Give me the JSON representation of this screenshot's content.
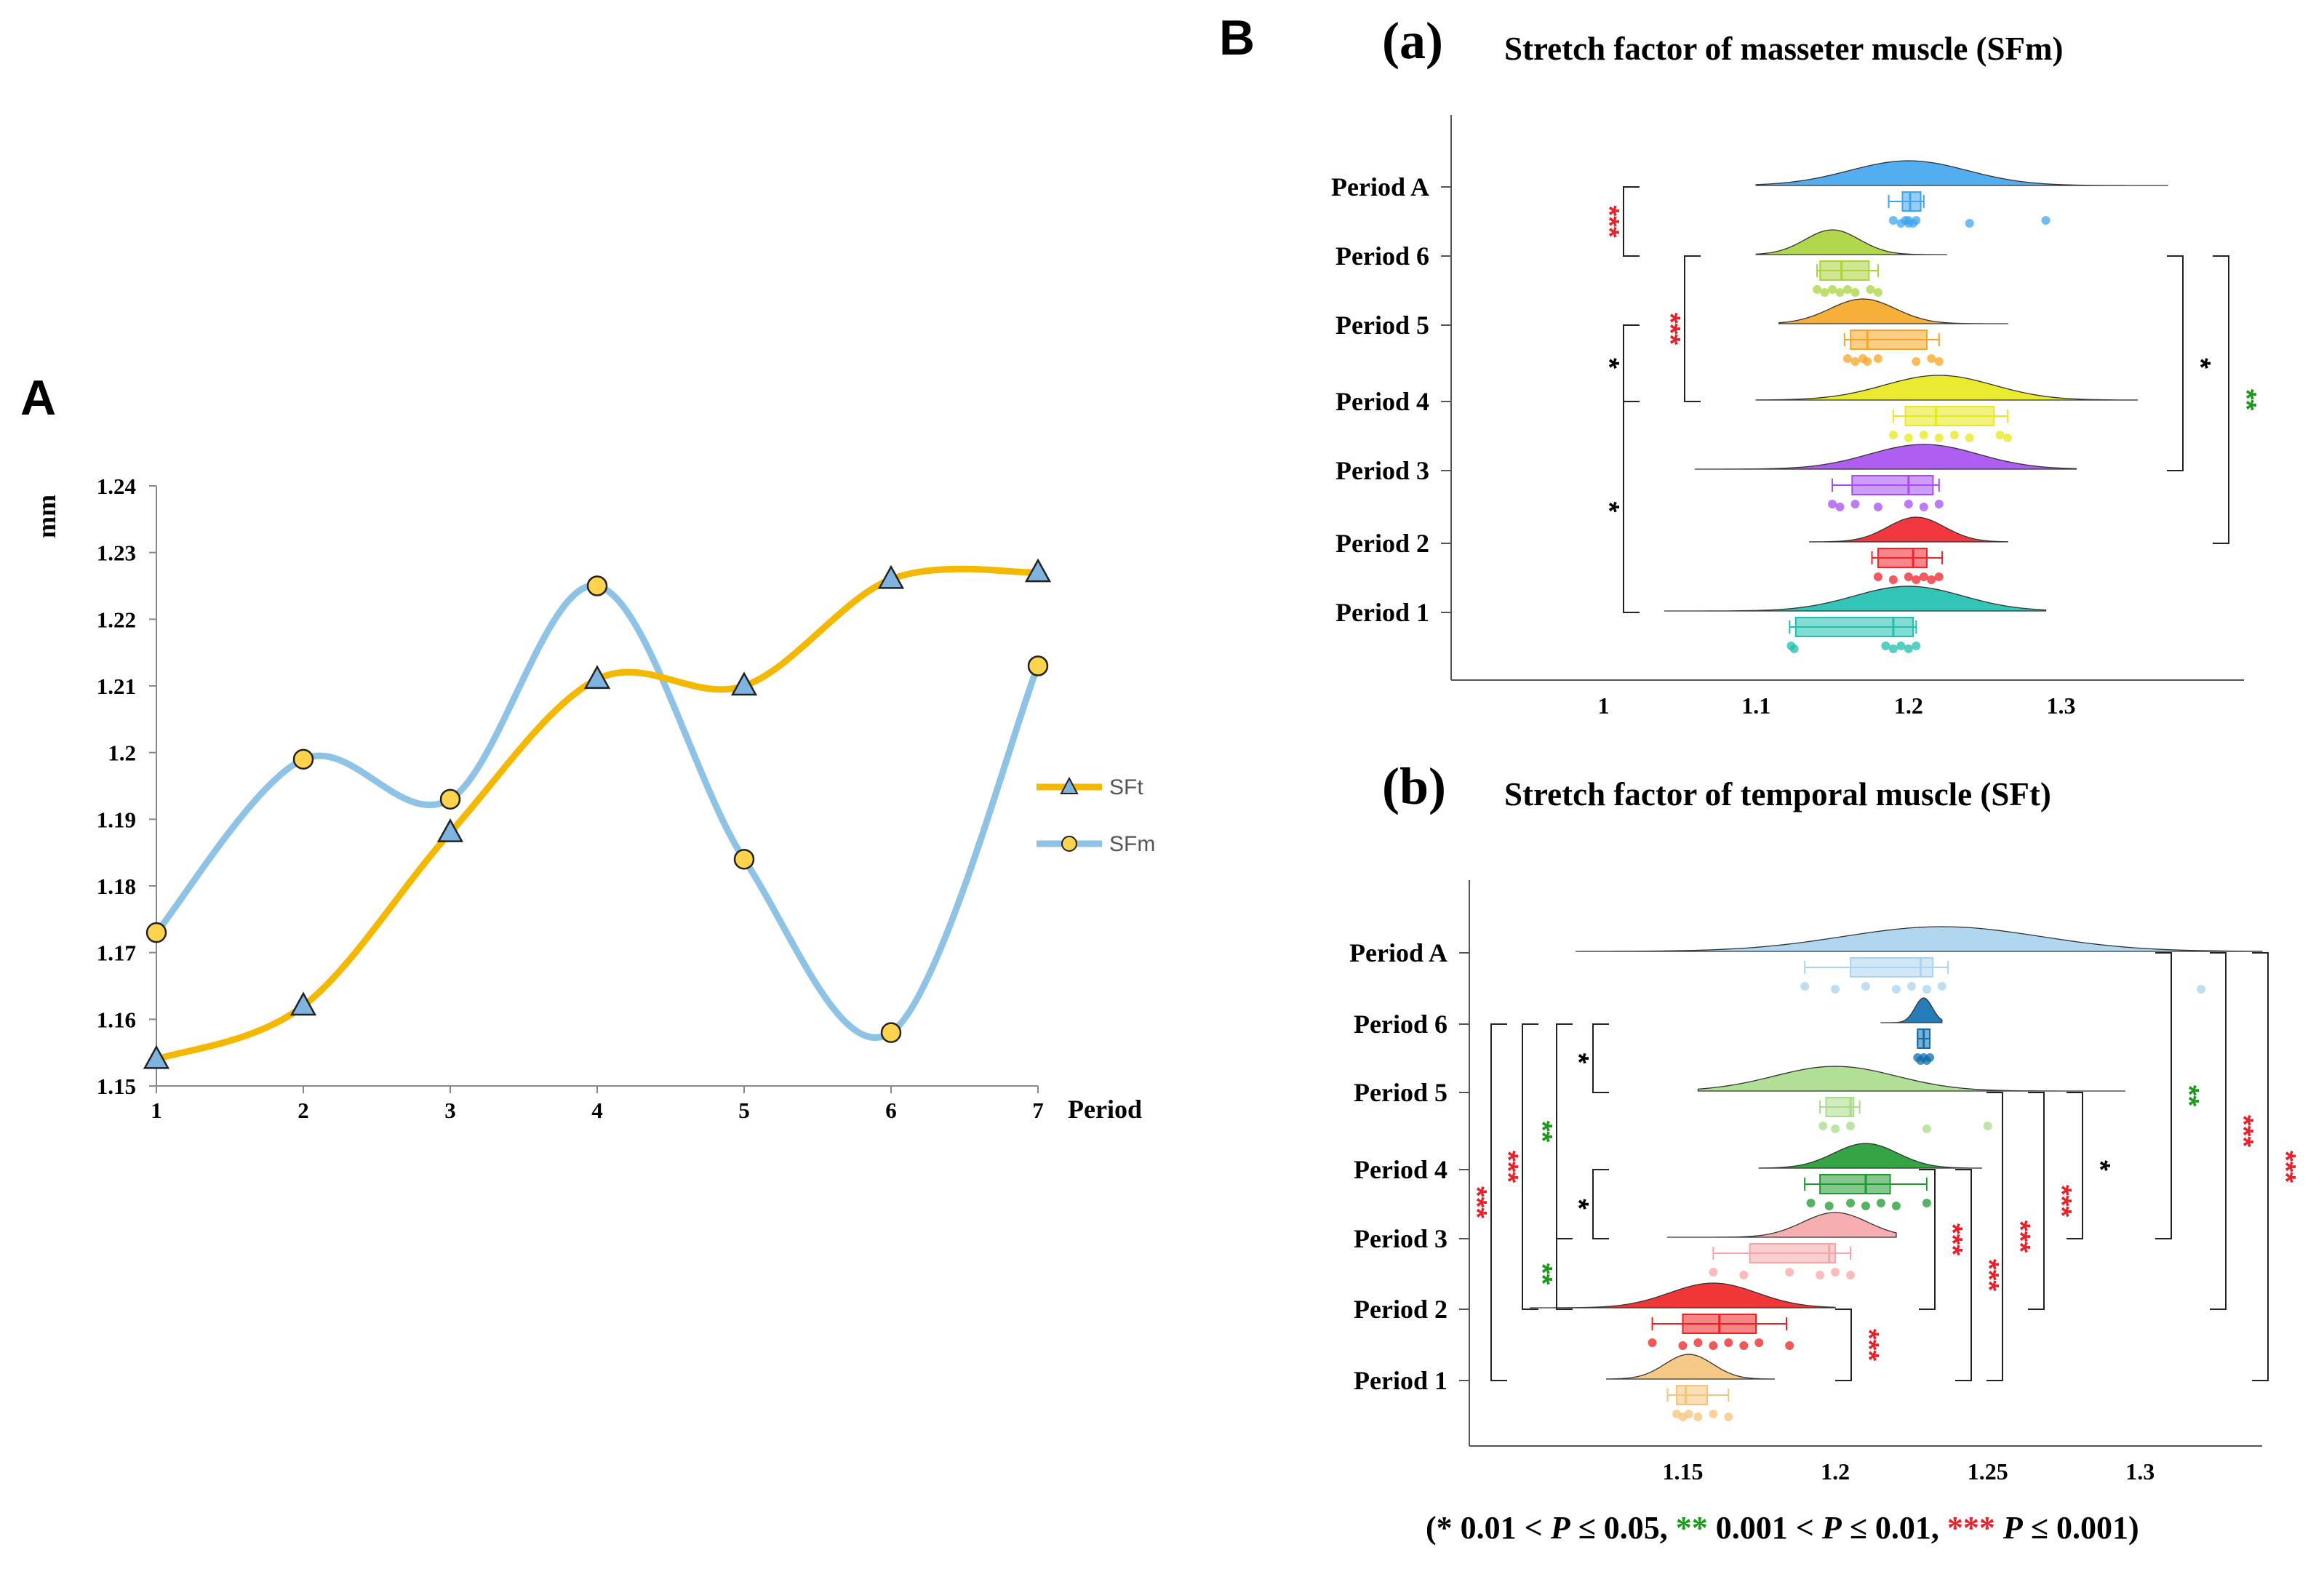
{
  "panel_labels": {
    "A": "A",
    "B": "B"
  },
  "colors": {
    "sft_line": "#F5B800",
    "sfm_line": "#8EC3E6",
    "triangle_fill": "#7FB3E0",
    "circle_fill": "#FFD34D",
    "sig_black": "#000000",
    "sig_green": "#1A9A1A",
    "sig_red": "#E8202A"
  },
  "chart_data": [
    {
      "id": "A",
      "type": "line",
      "xlabel": "Period",
      "ylabel": "mm",
      "x": [
        1,
        2,
        3,
        4,
        5,
        6,
        7
      ],
      "ylim": [
        1.15,
        1.24
      ],
      "yticks": [
        1.15,
        1.16,
        1.17,
        1.18,
        1.19,
        1.2,
        1.21,
        1.22,
        1.23,
        1.24
      ],
      "ytick_labels": [
        "1.15",
        "1.16",
        "1.17",
        "1.18",
        "1.19",
        "1.2",
        "1.21",
        "1.22",
        "1.23",
        "1.24"
      ],
      "series": [
        {
          "name": "SFt",
          "marker": "triangle",
          "color": "#F5B800",
          "marker_color": "#7FB3E0",
          "values": [
            1.154,
            1.162,
            1.188,
            1.211,
            1.21,
            1.226,
            1.227
          ]
        },
        {
          "name": "SFm",
          "marker": "circle",
          "color": "#8EC3E6",
          "marker_color": "#FFD34D",
          "values": [
            1.173,
            1.199,
            1.193,
            1.225,
            1.184,
            1.158,
            1.213
          ]
        }
      ],
      "legend": [
        "SFt",
        "SFm"
      ],
      "legend_position": "right"
    },
    {
      "id": "B-a",
      "type": "raincloud",
      "letter": "(a)",
      "title": "Stretch factor of masseter muscle (SFm)",
      "xlim": [
        0.9,
        1.42
      ],
      "xticks": [
        1,
        1.1,
        1.2,
        1.3
      ],
      "xtick_labels": [
        "1",
        "1.1",
        "1.2",
        "1.3"
      ],
      "groups": [
        {
          "label": "Period A",
          "color": "#3FA4F0",
          "q1": 1.196,
          "median": 1.201,
          "q3": 1.208,
          "whisk_lo": 1.187,
          "whisk_hi": 1.21,
          "density_range": [
            1.1,
            1.37
          ],
          "density_peak": 1.2,
          "points": [
            1.19,
            1.195,
            1.198,
            1.2,
            1.2,
            1.203,
            1.205,
            1.24,
            1.29
          ]
        },
        {
          "label": "Period 6",
          "color": "#A8D43A",
          "q1": 1.142,
          "median": 1.156,
          "q3": 1.174,
          "whisk_lo": 1.14,
          "whisk_hi": 1.18,
          "density_range": [
            1.1,
            1.225
          ],
          "density_peak": 1.15,
          "points": [
            1.14,
            1.145,
            1.15,
            1.155,
            1.16,
            1.165,
            1.175,
            1.18
          ]
        },
        {
          "label": "Period 5",
          "color": "#F5A623",
          "q1": 1.162,
          "median": 1.173,
          "q3": 1.212,
          "whisk_lo": 1.158,
          "whisk_hi": 1.22,
          "density_range": [
            1.115,
            1.265
          ],
          "density_peak": 1.17,
          "points": [
            1.16,
            1.165,
            1.17,
            1.173,
            1.18,
            1.205,
            1.215,
            1.22
          ]
        },
        {
          "label": "Period 4",
          "color": "#E8E81A",
          "q1": 1.198,
          "median": 1.218,
          "q3": 1.256,
          "whisk_lo": 1.19,
          "whisk_hi": 1.265,
          "density_range": [
            1.1,
            1.35
          ],
          "density_peak": 1.22,
          "points": [
            1.19,
            1.2,
            1.21,
            1.22,
            1.23,
            1.24,
            1.26,
            1.265
          ]
        },
        {
          "label": "Period 3",
          "color": "#A64DF0",
          "q1": 1.163,
          "median": 1.2,
          "q3": 1.216,
          "whisk_lo": 1.15,
          "whisk_hi": 1.22,
          "density_range": [
            1.06,
            1.31
          ],
          "density_peak": 1.21,
          "points": [
            1.15,
            1.155,
            1.165,
            1.18,
            1.2,
            1.21,
            1.22
          ]
        },
        {
          "label": "Period 2",
          "color": "#F0222A",
          "q1": 1.18,
          "median": 1.203,
          "q3": 1.212,
          "whisk_lo": 1.176,
          "whisk_hi": 1.222,
          "density_range": [
            1.135,
            1.265
          ],
          "density_peak": 1.205,
          "points": [
            1.18,
            1.19,
            1.2,
            1.205,
            1.21,
            1.215,
            1.22
          ]
        },
        {
          "label": "Period 1",
          "color": "#1DBFAF",
          "q1": 1.126,
          "median": 1.19,
          "q3": 1.203,
          "whisk_lo": 1.122,
          "whisk_hi": 1.205,
          "density_range": [
            1.04,
            1.29
          ],
          "density_peak": 1.2,
          "points": [
            1.123,
            1.125,
            1.185,
            1.19,
            1.195,
            1.2,
            1.205
          ]
        }
      ],
      "significance": [
        {
          "from": "Period A",
          "to": "Period 6",
          "label": "***",
          "level": "red",
          "side": "left"
        },
        {
          "from": "Period 5",
          "to": "Period 4",
          "label": "*",
          "level": "black",
          "side": "left"
        },
        {
          "from": "Period 6",
          "to": "Period 4",
          "label": "***",
          "level": "red",
          "side": "left"
        },
        {
          "from": "Period 4",
          "to": "Period 1",
          "label": "*",
          "level": "black",
          "side": "left"
        },
        {
          "from": "Period 6",
          "to": "Period 3",
          "label": "*",
          "level": "black",
          "side": "right"
        },
        {
          "from": "Period 6",
          "to": "Period 2",
          "label": "**",
          "level": "green",
          "side": "right"
        }
      ]
    },
    {
      "id": "B-b",
      "type": "raincloud",
      "letter": "(b)",
      "title": "Stretch factor of temporal muscle (SFt)",
      "xlim": [
        1.08,
        1.34
      ],
      "xticks": [
        1.15,
        1.2,
        1.25,
        1.3
      ],
      "xtick_labels": [
        "1.15",
        "1.2",
        "1.25",
        "1.3"
      ],
      "groups": [
        {
          "label": "Period A",
          "color": "#A9D3EE",
          "q1": 1.205,
          "median": 1.228,
          "q3": 1.232,
          "whisk_lo": 1.19,
          "whisk_hi": 1.237,
          "density_range": [
            1.115,
            1.34
          ],
          "density_peak": 1.235,
          "points": [
            1.19,
            1.2,
            1.21,
            1.22,
            1.225,
            1.23,
            1.235,
            1.32
          ]
        },
        {
          "label": "Period 6",
          "color": "#0C6FAE",
          "q1": 1.227,
          "median": 1.229,
          "q3": 1.231,
          "whisk_lo": 1.227,
          "whisk_hi": 1.231,
          "density_range": [
            1.215,
            1.235
          ],
          "density_peak": 1.229,
          "points": [
            1.227,
            1.228,
            1.229,
            1.23,
            1.231
          ]
        },
        {
          "label": "Period 5",
          "color": "#A8DC8A",
          "q1": 1.197,
          "median": 1.205,
          "q3": 1.206,
          "whisk_lo": 1.195,
          "whisk_hi": 1.208,
          "density_range": [
            1.155,
            1.295
          ],
          "density_peak": 1.2,
          "points": [
            1.196,
            1.2,
            1.205,
            1.23,
            1.25
          ]
        },
        {
          "label": "Period 4",
          "color": "#1F9A30",
          "q1": 1.195,
          "median": 1.21,
          "q3": 1.218,
          "whisk_lo": 1.19,
          "whisk_hi": 1.23,
          "density_range": [
            1.175,
            1.248
          ],
          "density_peak": 1.21,
          "points": [
            1.192,
            1.198,
            1.205,
            1.21,
            1.215,
            1.22,
            1.23
          ]
        },
        {
          "label": "Period 3",
          "color": "#F5A5A8",
          "q1": 1.172,
          "median": 1.198,
          "q3": 1.2,
          "whisk_lo": 1.16,
          "whisk_hi": 1.205,
          "density_range": [
            1.145,
            1.22
          ],
          "density_peak": 1.2,
          "points": [
            1.16,
            1.17,
            1.185,
            1.195,
            1.2,
            1.205
          ]
        },
        {
          "label": "Period 2",
          "color": "#EE2020",
          "q1": 1.15,
          "median": 1.162,
          "q3": 1.174,
          "whisk_lo": 1.14,
          "whisk_hi": 1.184,
          "density_range": [
            1.1,
            1.2
          ],
          "density_peak": 1.16,
          "points": [
            1.14,
            1.15,
            1.155,
            1.16,
            1.165,
            1.17,
            1.175,
            1.185
          ]
        },
        {
          "label": "Period 1",
          "color": "#F5C37A",
          "q1": 1.148,
          "median": 1.151,
          "q3": 1.158,
          "whisk_lo": 1.145,
          "whisk_hi": 1.165,
          "density_range": [
            1.125,
            1.18
          ],
          "density_peak": 1.152,
          "points": [
            1.148,
            1.15,
            1.152,
            1.155,
            1.16,
            1.165
          ]
        }
      ],
      "significance": [
        {
          "from": "Period 6",
          "to": "Period 5",
          "label": "*",
          "level": "black",
          "side": "left"
        },
        {
          "from": "Period 4",
          "to": "Period 3",
          "label": "*",
          "level": "black",
          "side": "left"
        },
        {
          "from": "Period 6",
          "to": "Period 3",
          "label": "**",
          "level": "green",
          "side": "left"
        },
        {
          "from": "Period 3",
          "to": "Period 2",
          "label": "**",
          "level": "green",
          "side": "left"
        },
        {
          "from": "Period 6",
          "to": "Period 2",
          "label": "***",
          "level": "red",
          "side": "left"
        },
        {
          "from": "Period 6",
          "to": "Period 1",
          "label": "***",
          "level": "red",
          "side": "left"
        },
        {
          "from": "Period 5",
          "to": "Period 3",
          "label": "*",
          "level": "black",
          "side": "right"
        },
        {
          "from": "Period 5",
          "to": "Period 2",
          "label": "***",
          "level": "red",
          "side": "right"
        },
        {
          "from": "Period 5",
          "to": "Period 1",
          "label": "***",
          "level": "red",
          "side": "right"
        },
        {
          "from": "Period 4",
          "to": "Period 2",
          "label": "***",
          "level": "red",
          "side": "right"
        },
        {
          "from": "Period 4",
          "to": "Period 1",
          "label": "***",
          "level": "red",
          "side": "right"
        },
        {
          "from": "Period 2",
          "to": "Period 1",
          "label": "***",
          "level": "red",
          "side": "right"
        },
        {
          "from": "Period A",
          "to": "Period 3",
          "label": "**",
          "level": "green",
          "side": "right"
        },
        {
          "from": "Period A",
          "to": "Period 2",
          "label": "***",
          "level": "red",
          "side": "right"
        },
        {
          "from": "Period A",
          "to": "Period 1",
          "label": "***",
          "level": "red",
          "side": "right"
        }
      ]
    }
  ],
  "footnote": {
    "open": "(",
    "star1": "*",
    "text1": " 0.01 < ",
    "p1": "P",
    "text1b": " ≤ 0.05, ",
    "star2": "**",
    "text2": " 0.001 < ",
    "p2": "P",
    "text2b": " ≤ 0.01, ",
    "star3": "***",
    "p3": "P",
    "text3": " ≤ 0.001)"
  }
}
